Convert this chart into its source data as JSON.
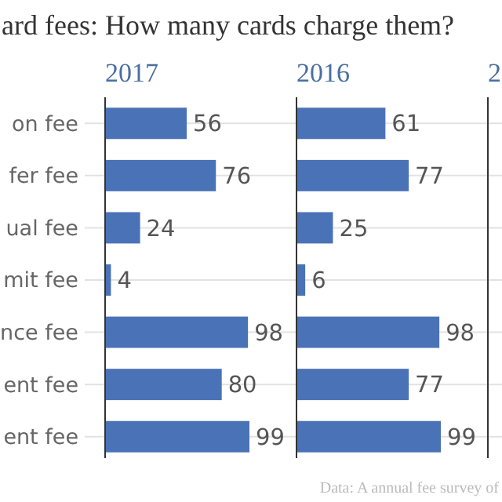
{
  "chart_data": [
    {
      "type": "bar",
      "orientation": "horizontal",
      "title": "2017",
      "subtitle": "ard fees: How many cards charge them?",
      "categories": [
        "on fee",
        "fer fee",
        "ual fee",
        "mit fee",
        "nce fee",
        "ent fee",
        "ent fee"
      ],
      "values": [
        56,
        76,
        24,
        4,
        98,
        80,
        99
      ],
      "color": "#4a72b6",
      "data_labels": true,
      "tick_labels": "y"
    },
    {
      "type": "bar",
      "orientation": "horizontal",
      "title": "2016",
      "categories": [
        null,
        null,
        null,
        null,
        null,
        null,
        null
      ],
      "values": [
        61,
        77,
        25,
        6,
        98,
        77,
        99
      ],
      "color": "#4a72b6",
      "data_labels": true,
      "tick_labels": false,
      "annotations": [
        "Data: A annual fee survey of"
      ]
    },
    {
      "type": "other",
      "title": "2"
    }
  ]
}
